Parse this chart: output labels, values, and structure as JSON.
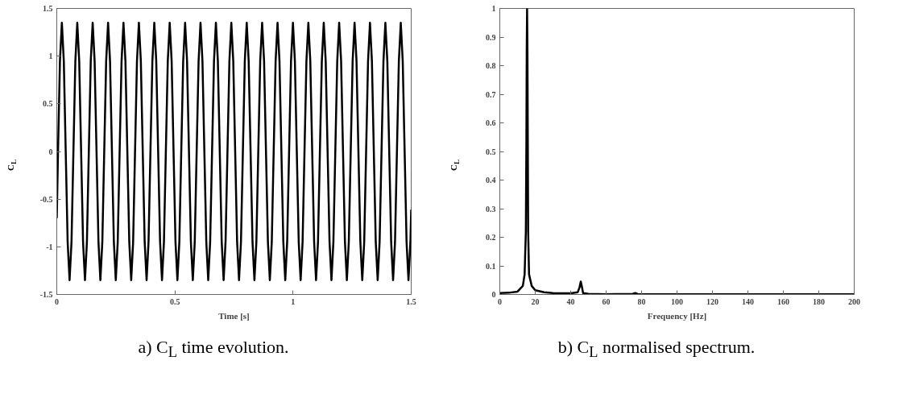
{
  "chart_data": [
    {
      "type": "line",
      "xlabel": "Time [s]",
      "ylabel": "C$_{L}$",
      "annotations": [
        "a) C$_{L}$ time evolution."
      ],
      "xlim": [
        0,
        1.5
      ],
      "xticks": [
        0,
        0.5,
        1,
        1.5
      ],
      "ylim": [
        -1.5,
        1.5
      ],
      "yticks": [
        -1.5,
        -1,
        -0.5,
        0,
        0.5,
        1,
        1.5
      ],
      "series": [
        {
          "color": "#000000",
          "x": [
            0,
            0.0052,
            0.0134,
            0.0215,
            0.0297,
            0.0378,
            0.046,
            0.0541,
            0.0623,
            0.0704,
            0.0786,
            0.0867,
            0.0949,
            0.103,
            0.1112,
            0.1193,
            0.1275,
            0.1356,
            0.1438,
            0.1519,
            0.1601,
            0.1682,
            0.1764,
            0.1845,
            0.1927,
            0.2008,
            0.209,
            0.2171,
            0.2253,
            0.2334,
            0.2416,
            0.2497,
            0.2579,
            0.266,
            0.2742,
            0.2823,
            0.2905,
            0.2986,
            0.3068,
            0.3149,
            0.3231,
            0.3312,
            0.3394,
            0.3475,
            0.3557,
            0.3638,
            0.372,
            0.3801,
            0.3883,
            0.3964,
            0.4046,
            0.4127,
            0.4209,
            0.429,
            0.4372,
            0.4453,
            0.4535,
            0.4616,
            0.4698,
            0.4779,
            0.4861,
            0.4942,
            0.5024,
            0.5105,
            0.5187,
            0.5268,
            0.535,
            0.5431,
            0.5513,
            0.5594,
            0.5676,
            0.5757,
            0.5839,
            0.592,
            0.6002,
            0.6083,
            0.6165,
            0.6246,
            0.6328,
            0.6409,
            0.6491,
            0.6572,
            0.6654,
            0.6735,
            0.6817,
            0.6898,
            0.698,
            0.7061,
            0.7143,
            0.7224,
            0.7306,
            0.7387,
            0.7469,
            0.755,
            0.7632,
            0.7713,
            0.7795,
            0.7876,
            0.7958,
            0.8039,
            0.8121,
            0.8202,
            0.8284,
            0.8365,
            0.8447,
            0.8528,
            0.861,
            0.8691,
            0.8773,
            0.8854,
            0.8936,
            0.9017,
            0.9099,
            0.918,
            0.9262,
            0.9343,
            0.9425,
            0.9506,
            0.9588,
            0.9669,
            0.9751,
            0.9832,
            0.9914,
            0.9995,
            1.0077,
            1.0158,
            1.024,
            1.0321,
            1.0403,
            1.0484,
            1.0566,
            1.0647,
            1.0729,
            1.081,
            1.0892,
            1.0973,
            1.1055,
            1.1136,
            1.1218,
            1.1299,
            1.1381,
            1.1462,
            1.1544,
            1.1625,
            1.1707,
            1.1788,
            1.187,
            1.1951,
            1.2033,
            1.2114,
            1.2196,
            1.2277,
            1.2359,
            1.244,
            1.2522,
            1.2603,
            1.2685,
            1.2766,
            1.2848,
            1.2929,
            1.3011,
            1.3092,
            1.3174,
            1.3255,
            1.3337,
            1.3418,
            1.35,
            1.3581,
            1.3663,
            1.3744,
            1.3826,
            1.3907,
            1.3989,
            1.407,
            1.4152,
            1.4233,
            1.4315,
            1.4396,
            1.4478,
            1.4559,
            1.4641,
            1.4722,
            1.4804,
            1.4885,
            1.4967,
            1.5
          ],
          "values": [
            -0.7,
            0,
            0.95,
            1.35,
            0.95,
            0,
            -0.95,
            -1.35,
            -0.95,
            0,
            0.95,
            1.35,
            0.95,
            0,
            -0.95,
            -1.35,
            -0.95,
            0,
            0.95,
            1.35,
            0.95,
            0,
            -0.95,
            -1.35,
            -0.95,
            0,
            0.95,
            1.35,
            0.95,
            0,
            -0.95,
            -1.35,
            -0.95,
            0,
            0.95,
            1.35,
            0.95,
            0,
            -0.95,
            -1.35,
            -0.95,
            0,
            0.95,
            1.35,
            0.95,
            0,
            -0.95,
            -1.35,
            -0.95,
            0,
            0.95,
            1.35,
            0.95,
            0,
            -0.95,
            -1.35,
            -0.95,
            0,
            0.95,
            1.35,
            0.95,
            0,
            -0.95,
            -1.35,
            -0.95,
            0,
            0.95,
            1.35,
            0.95,
            0,
            -0.95,
            -1.35,
            -0.95,
            0,
            0.95,
            1.35,
            0.95,
            0,
            -0.95,
            -1.35,
            -0.95,
            0,
            0.95,
            1.35,
            0.95,
            0,
            -0.95,
            -1.35,
            -0.95,
            0,
            0.95,
            1.35,
            0.95,
            0,
            -0.95,
            -1.35,
            -0.95,
            0,
            0.95,
            1.35,
            0.95,
            0,
            -0.95,
            -1.35,
            -0.95,
            0,
            0.95,
            1.35,
            0.95,
            0,
            -0.95,
            -1.35,
            -0.95,
            0,
            0.95,
            1.35,
            0.95,
            0,
            -0.95,
            -1.35,
            -0.95,
            0,
            0.95,
            1.35,
            0.95,
            0,
            -0.95,
            -1.35,
            -0.95,
            0,
            0.95,
            1.35,
            0.95,
            0,
            -0.95,
            -1.35,
            -0.95,
            0,
            0.95,
            1.35,
            0.95,
            0,
            -0.95,
            -1.35,
            -0.95,
            0,
            0.95,
            1.35,
            0.95,
            0,
            -0.95,
            -1.35,
            -0.95,
            0,
            0.95,
            1.35,
            0.95,
            0,
            -0.95,
            -1.35,
            -0.95,
            0,
            0.95,
            1.35,
            0.95,
            0,
            -0.95,
            -1.35,
            -0.95,
            0,
            0.95,
            1.35,
            0.95,
            0,
            -0.95,
            -1.35,
            -0.95,
            0,
            0.95,
            1.35,
            0.95,
            0,
            -0.95,
            -1.35,
            -0.95,
            -0.61
          ]
        }
      ]
    },
    {
      "type": "line",
      "xlabel": "Frequency [Hz]",
      "ylabel": "C$_{L}$",
      "annotations": [
        "b) C$_{L}$ normalised spectrum."
      ],
      "xlim": [
        0,
        200
      ],
      "xticks": [
        0,
        20,
        40,
        60,
        80,
        100,
        120,
        140,
        160,
        180,
        200
      ],
      "ylim": [
        0,
        1
      ],
      "yticks": [
        0,
        0.1,
        0.2,
        0.3,
        0.4,
        0.5,
        0.6,
        0.7,
        0.8,
        0.9,
        1
      ],
      "series": [
        {
          "color": "#000000",
          "x": [
            0,
            5,
            10,
            13,
            14,
            14.7,
            15,
            15.2,
            15.4,
            15.6,
            15.8,
            16,
            16.5,
            18,
            20,
            25,
            30,
            40,
            44,
            45,
            45.7,
            46.4,
            47,
            50,
            60,
            75,
            76.5,
            78,
            100,
            200
          ],
          "values": [
            0.005,
            0.006,
            0.01,
            0.03,
            0.07,
            0.22,
            0.53,
            0.85,
            1.0,
            0.85,
            0.53,
            0.22,
            0.07,
            0.03,
            0.015,
            0.008,
            0.005,
            0.004,
            0.008,
            0.025,
            0.045,
            0.025,
            0.005,
            0.002,
            0.001,
            0.002,
            0.005,
            0.001,
            0.001,
            0.001
          ]
        }
      ]
    }
  ]
}
